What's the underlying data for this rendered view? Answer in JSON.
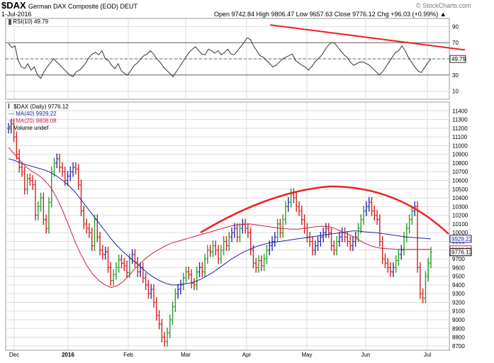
{
  "header": {
    "symbol": "$DAX",
    "description": "German DAX Composite (EOD)  DEUT",
    "date": "1-Jul-2016",
    "ohlc": "Open 9742.84  High 9806.47  Low 9657.63  Close 9776.12  Chg +96.03 (+0.99%) ▲",
    "brand": "© StockCharts.com"
  },
  "colors": {
    "up_bar": "#2a9d2a",
    "down_bar": "#cc2222",
    "neutral_bar": "#2a2aaa",
    "ma40": "#2222aa",
    "ma20": "#cc2244",
    "trend": "#ee2222",
    "rsi_line": "#333333",
    "grid": "#dddddd"
  },
  "rsi_panel": {
    "label": "RSI(10) 49.79",
    "last_value_label": "49.79"
  },
  "price_panel": {
    "legend_symbol": "$DAX (Daily) 9776.12",
    "legend_ma40": "MA(40) 9929.22",
    "legend_ma20": "MA(20) 9808.08",
    "legend_volume": "Volume undef",
    "label_ma40": "9929.22",
    "label_ma20": "9808.08",
    "label_close": "9776.12"
  },
  "chart_data": [
    {
      "type": "line",
      "panel": "rsi",
      "title": "RSI(10) 49.79",
      "ylim": [
        0,
        100
      ],
      "y_ticks": [
        10,
        30,
        50,
        70,
        90
      ],
      "reference_levels": [
        30,
        50,
        70
      ],
      "x_labels": [
        "Dec",
        "2016",
        "Feb",
        "Mar",
        "Apr",
        "May",
        "Jun",
        "Jul"
      ],
      "last_value": 49.79,
      "values": [
        69,
        64,
        66,
        48,
        40,
        38,
        44,
        36,
        40,
        30,
        26,
        34,
        40,
        45,
        50,
        46,
        42,
        38,
        34,
        30,
        28,
        34,
        36,
        40,
        45,
        52,
        56,
        58,
        55,
        60,
        50,
        48,
        42,
        38,
        44,
        35,
        32,
        30,
        36,
        42,
        45,
        50,
        54,
        56,
        60,
        56,
        50,
        46,
        40,
        36,
        32,
        28,
        34,
        40,
        46,
        52,
        58,
        62,
        65,
        60,
        56,
        55,
        62,
        60,
        57,
        60,
        55,
        58,
        62,
        56,
        55,
        60,
        65,
        70,
        76,
        74,
        66,
        60,
        54,
        52,
        48,
        44,
        40,
        42,
        46,
        50,
        52,
        54,
        56,
        48,
        45,
        42,
        40,
        36,
        40,
        46,
        50,
        54,
        60,
        66,
        70,
        70,
        65,
        60,
        55,
        52,
        46,
        42,
        44,
        46,
        46,
        44,
        42,
        38,
        34,
        30,
        34,
        40,
        46,
        52,
        58,
        60,
        66,
        60,
        52,
        46,
        40,
        35,
        33,
        39,
        45,
        50
      ]
    },
    {
      "type": "bar",
      "panel": "price",
      "title": "$DAX (Daily) 9776.12",
      "ylim": [
        8650,
        11500
      ],
      "y_ticks": [
        8700,
        8800,
        8900,
        9000,
        9100,
        9200,
        9300,
        9400,
        9500,
        9600,
        9700,
        9800,
        9900,
        10000,
        10100,
        10200,
        10300,
        10400,
        10500,
        10600,
        10700,
        10800,
        10900,
        11000,
        11100,
        11200,
        11300,
        11400
      ],
      "x_labels": [
        "Dec",
        "2016",
        "Feb",
        "Mar",
        "Apr",
        "May",
        "Jun",
        "Jul"
      ],
      "closes": [
        11200,
        11250,
        11100,
        10900,
        10750,
        10700,
        10500,
        10620,
        10600,
        10550,
        10200,
        10300,
        10400,
        10150,
        10050,
        10350,
        10700,
        10800,
        10850,
        10750,
        10700,
        10600,
        10650,
        10700,
        10750,
        10730,
        10550,
        10250,
        10100,
        10050,
        10000,
        9850,
        10150,
        9950,
        9800,
        9750,
        9780,
        9600,
        9450,
        9520,
        9600,
        9690,
        9650,
        9620,
        9540,
        9700,
        9750,
        9660,
        9550,
        9600,
        9480,
        9400,
        9300,
        9350,
        9200,
        9050,
        8950,
        8800,
        8750,
        8850,
        9000,
        9150,
        9300,
        9350,
        9400,
        9480,
        9550,
        9520,
        9420,
        9400,
        9550,
        9600,
        9550,
        9700,
        9800,
        9780,
        9850,
        9800,
        9700,
        9800,
        9900,
        9850,
        9950,
        10000,
        10050,
        9950,
        10050,
        10100,
        10050,
        10000,
        9800,
        9650,
        9600,
        9680,
        9620,
        9700,
        9800,
        9850,
        9900,
        9950,
        10100,
        10000,
        10150,
        10300,
        10350,
        10450,
        10400,
        10300,
        10250,
        10150,
        10050,
        9950,
        9900,
        9800,
        9850,
        9900,
        9950,
        10000,
        10050,
        10000,
        9850,
        9800,
        9900,
        9950,
        10000,
        9950,
        9900,
        9850,
        9900,
        9950,
        10050,
        10150,
        10250,
        10300,
        10350,
        10250,
        10200,
        10150,
        9900,
        9700,
        9650,
        9600,
        9550,
        9600,
        9680,
        9750,
        9800,
        9950,
        10050,
        10150,
        10250,
        10300,
        9600,
        9300,
        9250,
        9500,
        9650,
        9776
      ],
      "ma40": [
        10850,
        10830,
        10800,
        10780,
        10760,
        10740,
        10720,
        10690,
        10650,
        10600,
        10540,
        10470,
        10380,
        10290,
        10200,
        10110,
        10020,
        9930,
        9850,
        9780,
        9720,
        9660,
        9600,
        9540,
        9490,
        9450,
        9420,
        9400,
        9400,
        9410,
        9420,
        9440,
        9470,
        9510,
        9550,
        9600,
        9650,
        9700,
        9740,
        9780,
        9810,
        9840,
        9860,
        9880,
        9890,
        9900,
        9910,
        9920,
        9930,
        9940,
        9950,
        9960,
        9970,
        9980,
        9990,
        10000,
        10010,
        10020,
        10020,
        10010,
        10005,
        10000,
        9990,
        9980,
        9970,
        9960,
        9950,
        9945,
        9940,
        9935,
        9929
      ],
      "ma20": [
        10980,
        10900,
        10820,
        10750,
        10700,
        10660,
        10600,
        10520,
        10400,
        10250,
        10080,
        9900,
        9750,
        9620,
        9520,
        9450,
        9400,
        9370,
        9390,
        9440,
        9510,
        9590,
        9660,
        9720,
        9770,
        9810,
        9850,
        9880,
        9900,
        9920,
        9940,
        9960,
        9980,
        10000,
        10020,
        10040,
        10060,
        10080,
        10090,
        10095,
        10100,
        10090,
        10080,
        10070,
        10060,
        10050,
        10045,
        10040,
        10040,
        10050,
        10060,
        10070,
        10075,
        10070,
        10050,
        10020,
        9990,
        9960,
        9920,
        9880,
        9850,
        9830,
        9820,
        9815,
        9810,
        9809,
        9808,
        9808,
        9808,
        9808,
        9808
      ],
      "annotations": [
        "Rising arc trendline over price Mar–Jun",
        "Falling trendline on RSI Apr–Jul"
      ]
    }
  ]
}
